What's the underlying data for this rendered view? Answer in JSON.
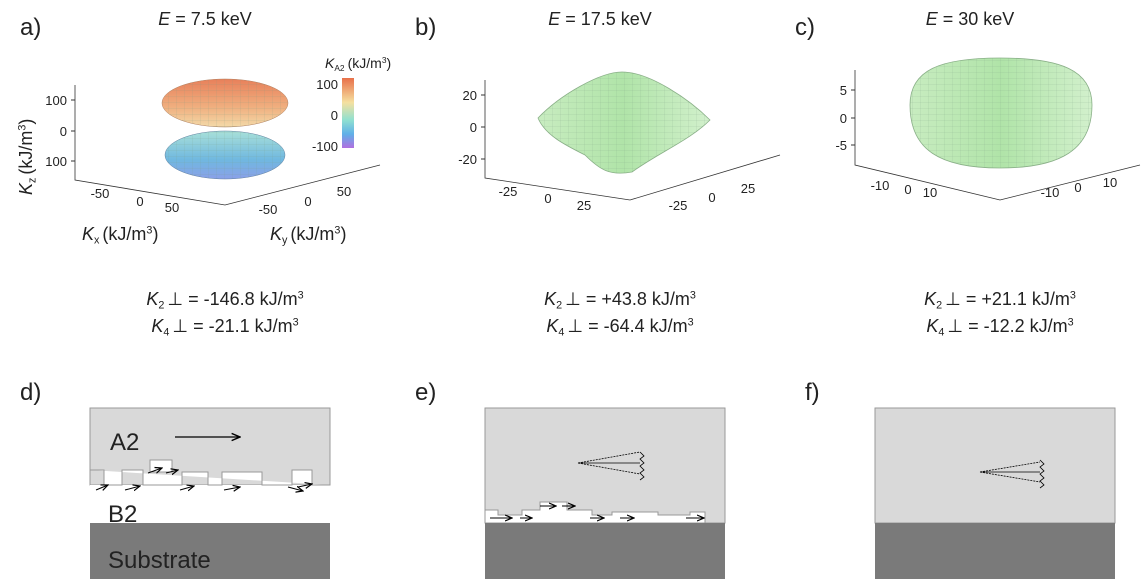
{
  "panels": [
    {
      "label": "a)",
      "title_symbol": "E",
      "title_text": "= 7.5 keV",
      "z_ticks": [
        "100",
        "0",
        "100"
      ],
      "x_ticks": [
        "-50",
        "0",
        "50"
      ],
      "y_ticks": [
        "-50",
        "0",
        "50"
      ],
      "z_label": {
        "symbol": "K",
        "sub": "z",
        "text": "(kJ/m",
        "sup": "3",
        "end": ")"
      },
      "x_label": {
        "symbol": "K",
        "sub": "x",
        "text": "(kJ/m",
        "sup": "3",
        "end": ")"
      },
      "y_label": {
        "symbol": "K",
        "sub": "y",
        "text": "(kJ/m",
        "sup": "3",
        "end": ")"
      },
      "colorbar": {
        "symbol": "K",
        "sub": "A2",
        "text": "(kJ/m",
        "sup": "3",
        "end": ")",
        "ticks": [
          "100",
          "0",
          "-100"
        ]
      },
      "k2": {
        "symbol": "K",
        "sub": "2",
        "text": "⊥ = -146.8 kJ/m",
        "sup": "3"
      },
      "k4": {
        "symbol": "K",
        "sub": "4",
        "text": "⊥ = -21.1 kJ/m",
        "sup": "3"
      }
    },
    {
      "label": "b)",
      "title_symbol": "E",
      "title_text": "= 17.5 keV",
      "z_ticks": [
        "20",
        "0",
        "-20"
      ],
      "x_ticks": [
        "-25",
        "0",
        "25"
      ],
      "y_ticks": [
        "-25",
        "0",
        "25"
      ],
      "k2": {
        "symbol": "K",
        "sub": "2",
        "text": "⊥ = +43.8 kJ/m",
        "sup": "3"
      },
      "k4": {
        "symbol": "K",
        "sub": "4",
        "text": "⊥ = -64.4 kJ/m",
        "sup": "3"
      }
    },
    {
      "label": "c)",
      "title_symbol": "E",
      "title_text": "= 30 keV",
      "z_ticks": [
        "5",
        "0",
        "-5"
      ],
      "x_ticks": [
        "-10",
        "0",
        "10"
      ],
      "y_ticks": [
        "-10",
        "0",
        "10"
      ],
      "k2": {
        "symbol": "K",
        "sub": "2",
        "text": "⊥ = +21.1 kJ/m",
        "sup": "3"
      },
      "k4": {
        "symbol": "K",
        "sub": "4",
        "text": "⊥ = -12.2 kJ/m",
        "sup": "3"
      }
    }
  ],
  "layers": {
    "label": "d)",
    "a2": "A2",
    "b2": "B2",
    "substrate": "Substrate",
    "label_e": "e)",
    "label_f": "f)"
  }
}
